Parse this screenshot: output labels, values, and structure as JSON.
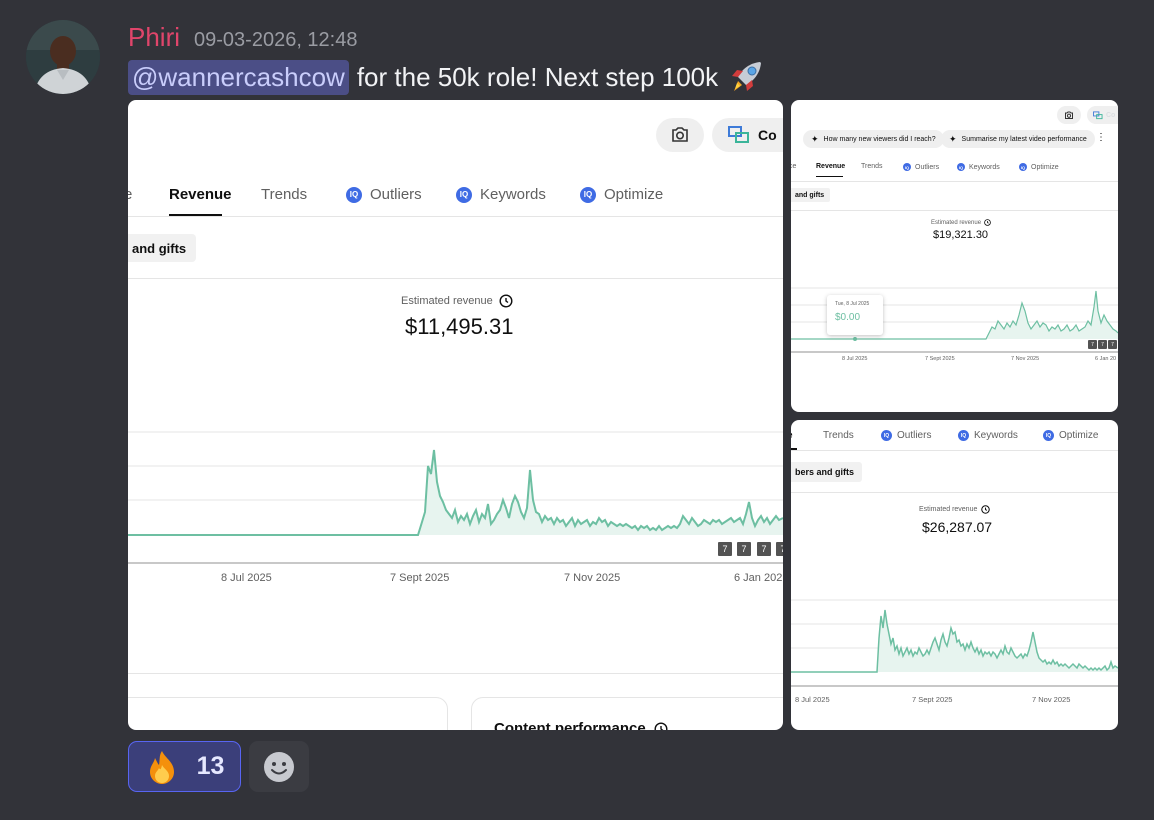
{
  "message": {
    "author": "Phiri",
    "timestamp": "09-03-2026, 12:48",
    "mention": "@wannercashcow",
    "text": "for the 50k role! Next step 100k",
    "author_color": "#e0456b",
    "mention_bg": "#4b4e86"
  },
  "attachment_main": {
    "camera_icon": "camera-icon",
    "create_button_label": "Co",
    "tabs": [
      {
        "label": "e"
      },
      {
        "label": "Revenue",
        "active": true
      },
      {
        "label": "Trends"
      },
      {
        "label": "Outliers"
      },
      {
        "label": "Keywords"
      },
      {
        "label": "Optimize"
      }
    ],
    "chip_label": "and gifts",
    "metric_label": "Estimated revenue",
    "metric_value": "$11,495.31",
    "x_labels": [
      "8 Jul 2025",
      "7 Sept 2025",
      "7 Nov 2025",
      "6 Jan 202"
    ],
    "video_markers": [
      "7",
      "7",
      "7",
      "7"
    ],
    "bottom_card_title": "Content performance",
    "series_color": "#6dbfa2"
  },
  "attachment_top_right": {
    "camera_icon": "camera-icon",
    "create_button_label": "Co",
    "prompt_chips": [
      "How many new viewers did I reach?",
      "Summarise my latest video performance"
    ],
    "tabs": [
      {
        "label": "ce"
      },
      {
        "label": "Revenue",
        "active": true
      },
      {
        "label": "Trends"
      },
      {
        "label": "Outliers"
      },
      {
        "label": "Keywords"
      },
      {
        "label": "Optimize"
      }
    ],
    "chip_label": "and gifts",
    "metric_label": "Estimated revenue",
    "metric_value": "$19,321.30",
    "tooltip_date": "Tue, 8 Jul 2025",
    "tooltip_value": "$0.00",
    "x_labels": [
      "8 Jul 2025",
      "7 Sept 2025",
      "7 Nov 2025",
      "6 Jan 20"
    ],
    "video_markers": [
      "7",
      "7",
      "7"
    ]
  },
  "attachment_bottom_right": {
    "tabs": [
      {
        "label": "e"
      },
      {
        "label": "Trends"
      },
      {
        "label": "Outliers"
      },
      {
        "label": "Keywords"
      },
      {
        "label": "Optimize"
      }
    ],
    "chip_label": "bers and gifts",
    "metric_label": "Estimated revenue",
    "metric_value": "$26,287.07",
    "x_labels": [
      "8 Jul 2025",
      "7 Sept 2025",
      "7 Nov 2025"
    ]
  },
  "reactions": [
    {
      "emoji": "fire-icon",
      "count": "13"
    }
  ],
  "add_reaction_icon": "smiley-face-icon"
}
